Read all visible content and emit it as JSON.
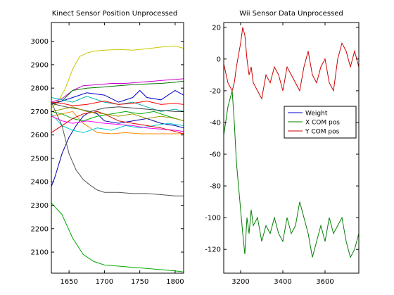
{
  "chart_data": [
    {
      "type": "line",
      "title": "Kinect Sensor Position Unprocessed",
      "xlim": [
        1625,
        1812
      ],
      "ylim": [
        2010,
        3080
      ],
      "xticks": [
        1650,
        1700,
        1750,
        1800
      ],
      "yticks": [
        2100,
        2200,
        2300,
        2400,
        2500,
        2600,
        2700,
        2800,
        2900,
        3000
      ],
      "grid": false,
      "series": [
        {
          "color": "#c8c800",
          "x": [
            1625,
            1635,
            1645,
            1655,
            1665,
            1675,
            1685,
            1700,
            1720,
            1740,
            1760,
            1780,
            1800,
            1812
          ],
          "y": [
            2715,
            2745,
            2800,
            2880,
            2935,
            2950,
            2958,
            2962,
            2965,
            2962,
            2968,
            2975,
            2980,
            2970
          ]
        },
        {
          "color": "#cc00cc",
          "x": [
            1625,
            1640,
            1655,
            1670,
            1690,
            1710,
            1730,
            1750,
            1770,
            1790,
            1812
          ],
          "y": [
            2740,
            2755,
            2790,
            2810,
            2815,
            2820,
            2820,
            2825,
            2830,
            2835,
            2840
          ]
        },
        {
          "color": "#007700",
          "x": [
            1625,
            1640,
            1655,
            1675,
            1700,
            1720,
            1740,
            1760,
            1780,
            1800,
            1812
          ],
          "y": [
            2730,
            2745,
            2790,
            2800,
            2805,
            2810,
            2815,
            2818,
            2820,
            2825,
            2830
          ]
        },
        {
          "color": "#0000cc",
          "x": [
            1625,
            1640,
            1655,
            1675,
            1700,
            1720,
            1740,
            1750,
            1760,
            1780,
            1800,
            1812
          ],
          "y": [
            2735,
            2745,
            2760,
            2780,
            2770,
            2740,
            2760,
            2790,
            2760,
            2750,
            2790,
            2770
          ]
        },
        {
          "color": "#00b0b0",
          "x": [
            1625,
            1640,
            1655,
            1675,
            1700,
            1720,
            1740,
            1760,
            1780,
            1800,
            1812
          ],
          "y": [
            2760,
            2750,
            2740,
            2765,
            2740,
            2730,
            2740,
            2720,
            2700,
            2710,
            2700
          ]
        },
        {
          "color": "#ff0000",
          "x": [
            1625,
            1640,
            1655,
            1675,
            1700,
            1720,
            1740,
            1760,
            1780,
            1800,
            1812
          ],
          "y": [
            2740,
            2735,
            2725,
            2730,
            2745,
            2730,
            2735,
            2745,
            2730,
            2735,
            2730
          ]
        },
        {
          "color": "#444444",
          "x": [
            1625,
            1645,
            1665,
            1680,
            1700,
            1720,
            1740,
            1760,
            1780,
            1800,
            1812
          ],
          "y": [
            2735,
            2720,
            2710,
            2700,
            2715,
            2720,
            2715,
            2710,
            2705,
            2700,
            2700
          ]
        },
        {
          "color": "#ff8800",
          "x": [
            1625,
            1640,
            1655,
            1670,
            1690,
            1710,
            1730,
            1750,
            1770,
            1790,
            1812
          ],
          "y": [
            2680,
            2690,
            2700,
            2650,
            2610,
            2605,
            2610,
            2605,
            2605,
            2605,
            2605
          ]
        },
        {
          "color": "#0000aa",
          "x": [
            1625,
            1630,
            1640,
            1650,
            1660,
            1670,
            1680,
            1690,
            1700,
            1720,
            1740,
            1760,
            1780,
            1800,
            1812
          ],
          "y": [
            2380,
            2420,
            2520,
            2590,
            2640,
            2680,
            2700,
            2690,
            2660,
            2650,
            2660,
            2670,
            2650,
            2640,
            2630
          ]
        },
        {
          "color": "#00aa00",
          "x": [
            1625,
            1640,
            1655,
            1670,
            1690,
            1710,
            1730,
            1750,
            1770,
            1790,
            1812
          ],
          "y": [
            2700,
            2690,
            2670,
            2660,
            2680,
            2690,
            2700,
            2690,
            2700,
            2680,
            2660
          ]
        },
        {
          "color": "#00cccc",
          "x": [
            1625,
            1640,
            1655,
            1670,
            1690,
            1710,
            1730,
            1750,
            1770,
            1790,
            1812
          ],
          "y": [
            2690,
            2640,
            2620,
            2610,
            2630,
            2620,
            2640,
            2630,
            2640,
            2650,
            2640
          ]
        },
        {
          "color": "#ff00ff",
          "x": [
            1625,
            1640,
            1655,
            1675,
            1700,
            1720,
            1740,
            1760,
            1780,
            1800,
            1812
          ],
          "y": [
            2680,
            2660,
            2650,
            2660,
            2650,
            2645,
            2640,
            2630,
            2625,
            2620,
            2615
          ]
        },
        {
          "color": "#dd0000",
          "x": [
            1625,
            1640,
            1655,
            1670,
            1690,
            1700,
            1720,
            1740,
            1760,
            1780,
            1800,
            1812
          ],
          "y": [
            2610,
            2640,
            2670,
            2690,
            2700,
            2690,
            2660,
            2650,
            2640,
            2630,
            2615,
            2605
          ]
        },
        {
          "color": "#999900",
          "x": [
            1625,
            1640,
            1655,
            1675,
            1700,
            1720,
            1740,
            1760,
            1780,
            1800,
            1812
          ],
          "y": [
            2700,
            2710,
            2720,
            2700,
            2690,
            2680,
            2690,
            2670,
            2680,
            2670,
            2660
          ]
        },
        {
          "color": "#555555",
          "x": [
            1625,
            1640,
            1650,
            1660,
            1670,
            1680,
            1690,
            1700,
            1720,
            1740,
            1760,
            1780,
            1800,
            1812
          ],
          "y": [
            2740,
            2640,
            2520,
            2450,
            2410,
            2385,
            2365,
            2355,
            2355,
            2350,
            2350,
            2345,
            2340,
            2340
          ]
        },
        {
          "color": "#00aa00",
          "x": [
            1625,
            1640,
            1655,
            1670,
            1685,
            1700,
            1720,
            1740,
            1760,
            1780,
            1800,
            1812
          ],
          "y": [
            2310,
            2260,
            2160,
            2090,
            2060,
            2045,
            2040,
            2035,
            2030,
            2025,
            2020,
            2015
          ]
        }
      ]
    },
    {
      "type": "line",
      "title": "Wii Sensor Data Unprocessed",
      "xlim": [
        3120,
        3760
      ],
      "ylim": [
        -135,
        23
      ],
      "xticks": [
        3200,
        3400,
        3600
      ],
      "yticks": [
        20,
        0,
        -20,
        -40,
        -60,
        -80,
        -100,
        -120
      ],
      "grid": false,
      "legend": "right",
      "series": [
        {
          "name": "Weight",
          "color": "#0000cc",
          "x": [],
          "y": []
        },
        {
          "name": "X COM pos",
          "color": "#007f00",
          "x": [
            3120,
            3140,
            3160,
            3170,
            3180,
            3200,
            3210,
            3220,
            3230,
            3240,
            3250,
            3260,
            3280,
            3300,
            3320,
            3340,
            3360,
            3380,
            3400,
            3420,
            3440,
            3460,
            3480,
            3500,
            3520,
            3540,
            3560,
            3580,
            3600,
            3620,
            3640,
            3660,
            3680,
            3700,
            3720,
            3740,
            3760
          ],
          "y": [
            -48,
            -30,
            -20,
            -40,
            -65,
            -95,
            -110,
            -123,
            -100,
            -110,
            -95,
            -105,
            -100,
            -115,
            -105,
            -110,
            -100,
            -110,
            -115,
            -100,
            -110,
            -105,
            -90,
            -100,
            -110,
            -125,
            -115,
            -105,
            -115,
            -100,
            -110,
            -105,
            -100,
            -115,
            -125,
            -120,
            -110
          ]
        },
        {
          "name": "Y COM pos",
          "color": "#cc0000",
          "x": [
            3120,
            3140,
            3160,
            3170,
            3180,
            3200,
            3210,
            3220,
            3230,
            3240,
            3250,
            3260,
            3280,
            3300,
            3320,
            3340,
            3360,
            3380,
            3400,
            3420,
            3440,
            3460,
            3480,
            3500,
            3520,
            3540,
            3560,
            3580,
            3600,
            3620,
            3640,
            3660,
            3680,
            3700,
            3720,
            3740,
            3760
          ],
          "y": [
            -3,
            -15,
            -20,
            -15,
            -5,
            10,
            20,
            15,
            0,
            -10,
            -5,
            -15,
            -20,
            -25,
            -10,
            -15,
            -5,
            -10,
            -20,
            -5,
            -10,
            -15,
            -20,
            -5,
            5,
            -10,
            -15,
            -5,
            0,
            -15,
            -20,
            0,
            10,
            5,
            -5,
            5,
            -5
          ]
        }
      ]
    }
  ]
}
